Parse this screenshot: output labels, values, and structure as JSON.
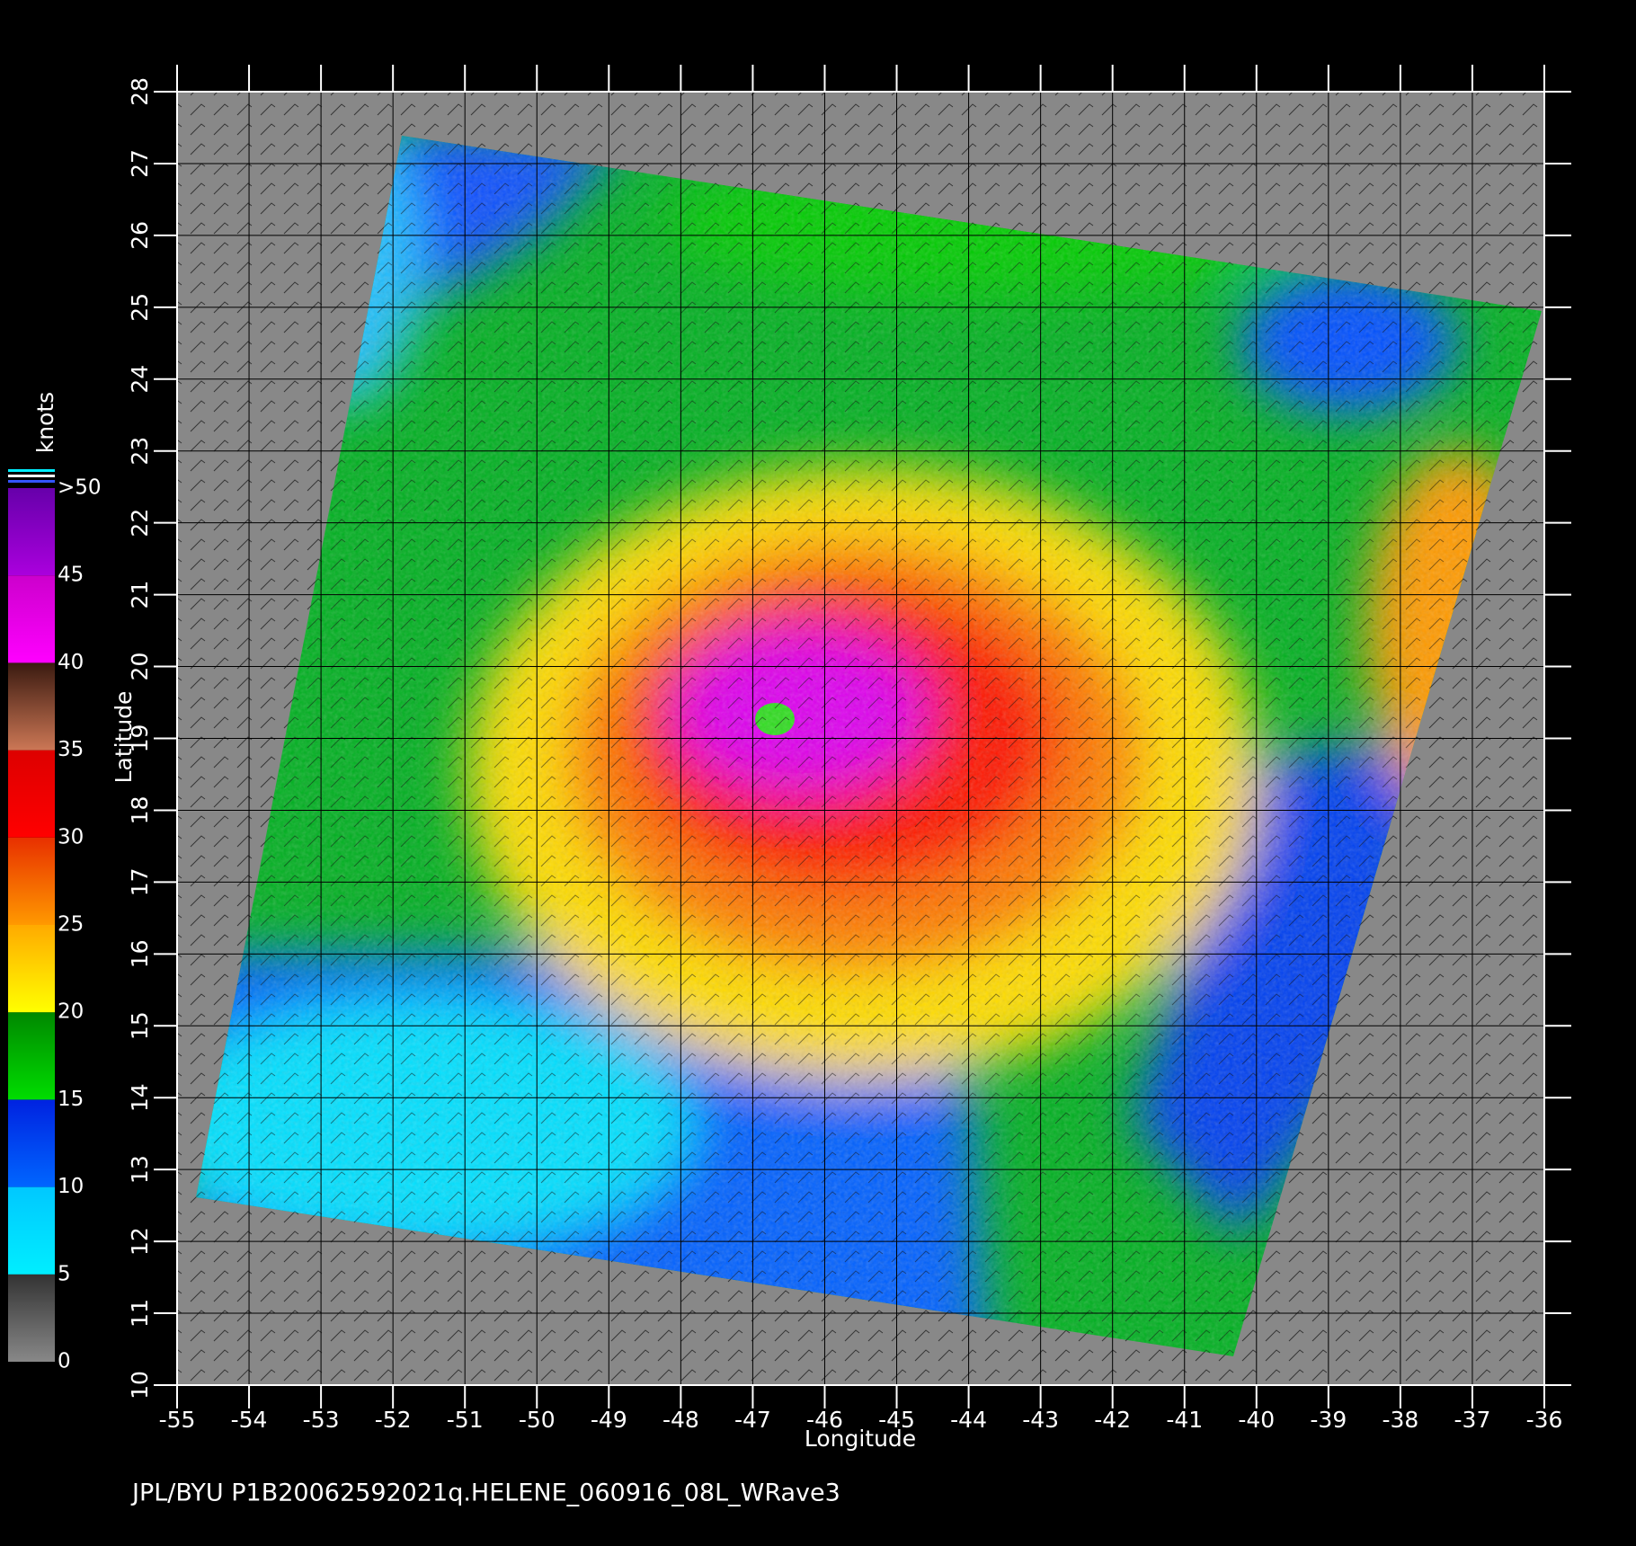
{
  "map": {
    "xlabel": "Longitude",
    "ylabel": "Latitude",
    "xlim": [
      -55,
      -36
    ],
    "ylim": [
      10,
      28
    ],
    "xticks": [
      -55,
      -54,
      -53,
      -52,
      -51,
      -50,
      -49,
      -48,
      -47,
      -46,
      -45,
      -44,
      -43,
      -42,
      -41,
      -40,
      -39,
      -38,
      -37,
      -36
    ],
    "yticks": [
      10,
      11,
      12,
      13,
      14,
      15,
      16,
      17,
      18,
      19,
      20,
      21,
      22,
      23,
      24,
      25,
      26,
      27,
      28
    ],
    "grid": true,
    "colorbar": {
      "title": "knots",
      "lim": [
        0,
        50
      ],
      "ticks": [
        0,
        5,
        10,
        15,
        20,
        25,
        30,
        35,
        40,
        45,
        {
          "value": 50,
          "label": ">50"
        }
      ],
      "colors": [
        [
          "#888888",
          "#333333"
        ],
        [
          "#00eeff",
          "#00c8ff"
        ],
        [
          "#0066ff",
          "#0022e0"
        ],
        [
          "#00dd00",
          "#008800"
        ],
        [
          "#ffff00",
          "#ffaa00"
        ],
        [
          "#ff9900",
          "#e83000"
        ],
        [
          "#ff0000",
          "#dd0000"
        ],
        [
          "#cc7755",
          "#3a1a10"
        ],
        [
          "#ff00ff",
          "#cc00cc"
        ],
        [
          "#aa00dd",
          "#6600aa"
        ]
      ]
    },
    "caption": "JPL/BYU  P1B20062592021q.HELENE_060916_08L_WRave3"
  }
}
